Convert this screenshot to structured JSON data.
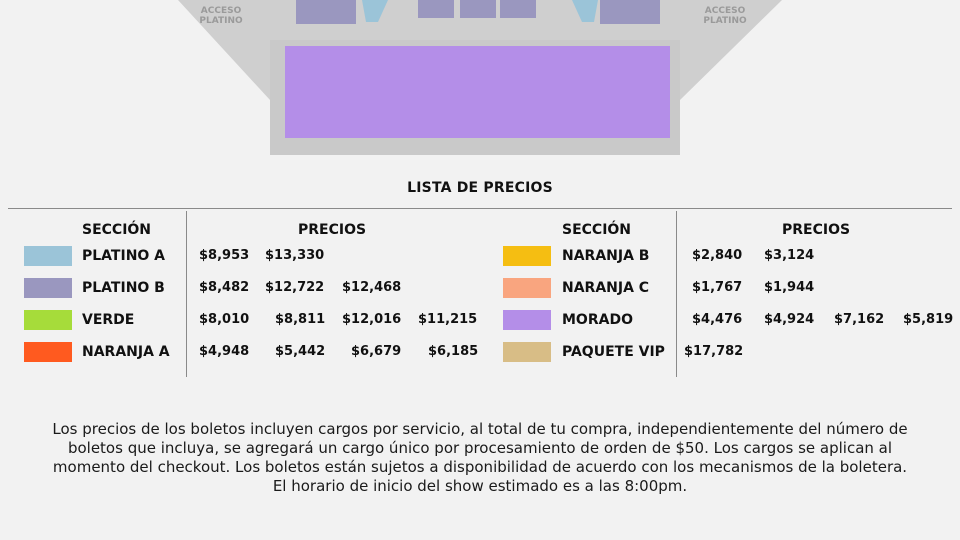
{
  "map": {
    "acceso_left": [
      "ACCESO",
      "PLATINO"
    ],
    "acceso_right": [
      "ACCESO",
      "PLATINO"
    ]
  },
  "price_list": {
    "title": "LISTA DE PRECIOS",
    "left_headers": {
      "section": "SECCIÓN",
      "prices": "PRECIOS"
    },
    "right_headers": {
      "section": "SECCIÓN",
      "prices": "PRECIOS"
    },
    "left_rows": [
      {
        "name": "PLATINO A",
        "color": "#9bc4d8",
        "prices": [
          "$8,953",
          "$13,330"
        ]
      },
      {
        "name": "PLATINO B",
        "color": "#9a97bf",
        "prices": [
          "$8,482",
          "$12,722",
          "$12,468"
        ]
      },
      {
        "name": "VERDE",
        "color": "#a6dc3a",
        "prices": [
          "$8,010",
          "$8,811",
          "$12,016",
          "$11,215"
        ]
      },
      {
        "name": "NARANJA A",
        "color": "#ff5a1f",
        "prices": [
          "$4,948",
          "$5,442",
          "$6,679",
          "$6,185"
        ]
      }
    ],
    "right_rows": [
      {
        "name": "NARANJA B",
        "color": "#f5be12",
        "prices": [
          "$2,840",
          "$3,124"
        ]
      },
      {
        "name": "NARANJA C",
        "color": "#f9a57f",
        "prices": [
          "$1,767",
          "$1,944"
        ]
      },
      {
        "name": "MORADO",
        "color": "#b48ee8",
        "prices": [
          "$4,476",
          "$4,924",
          "$7,162",
          "$5,819"
        ]
      },
      {
        "name": "PAQUETE VIP",
        "color": "#d8bd86",
        "prices": [
          "$17,782"
        ]
      }
    ]
  },
  "note_lines": [
    "Los precios de los boletos incluyen cargos por servicio, al total de tu compra, independientemente del número de",
    "boletos que incluya, se agregará un cargo único por procesamiento de orden de $50. Los cargos se aplican al",
    "momento del checkout. Los boletos están sujetos a disponibilidad de acuerdo con los mecanismos de la boletera.",
    "El horario de inicio del show estimado es a las 8:00pm."
  ]
}
